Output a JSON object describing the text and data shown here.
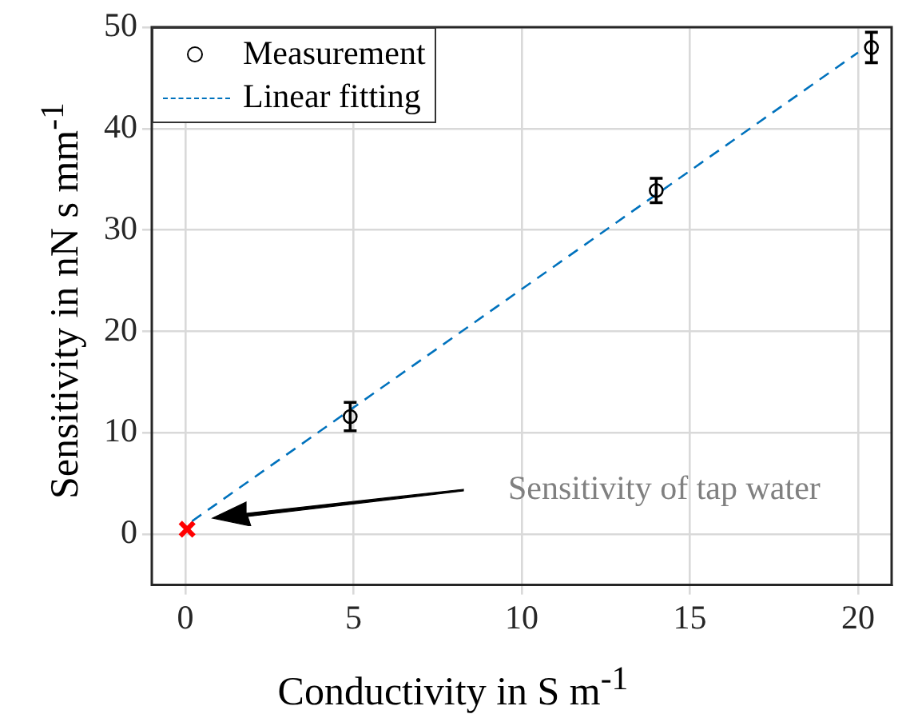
{
  "chart_data": {
    "type": "scatter",
    "xlabel": "Conductivity in S m$^{-1}$",
    "ylabel": "Sensitivity in nN s mm$^{-1}$",
    "xlim": [
      -1,
      21
    ],
    "xticks": [
      0,
      5,
      10,
      15,
      20
    ],
    "ylim": [
      -5,
      50
    ],
    "yticks": [
      0,
      10,
      20,
      30,
      40,
      50
    ],
    "grid": true,
    "legend": "top left",
    "series": [
      {
        "name": "Measurement",
        "marker": "circle",
        "color": "#000000",
        "x": [
          4.9,
          14,
          20.4
        ],
        "values": [
          11.6,
          33.9,
          48
        ],
        "errors": [
          1.4,
          1.2,
          1.5
        ]
      },
      {
        "name": "Linear fitting",
        "type": "line",
        "marker": "none",
        "line_style": "dashed",
        "color": "#0072bd",
        "x": [
          0.2,
          20
        ],
        "values": [
          1.3,
          47.5
        ]
      },
      {
        "marker": "cross",
        "color": "#ff0000",
        "x": [
          0.05
        ],
        "values": [
          0.5
        ]
      }
    ],
    "annotations": [
      "Sensitivity of tap water"
    ]
  }
}
